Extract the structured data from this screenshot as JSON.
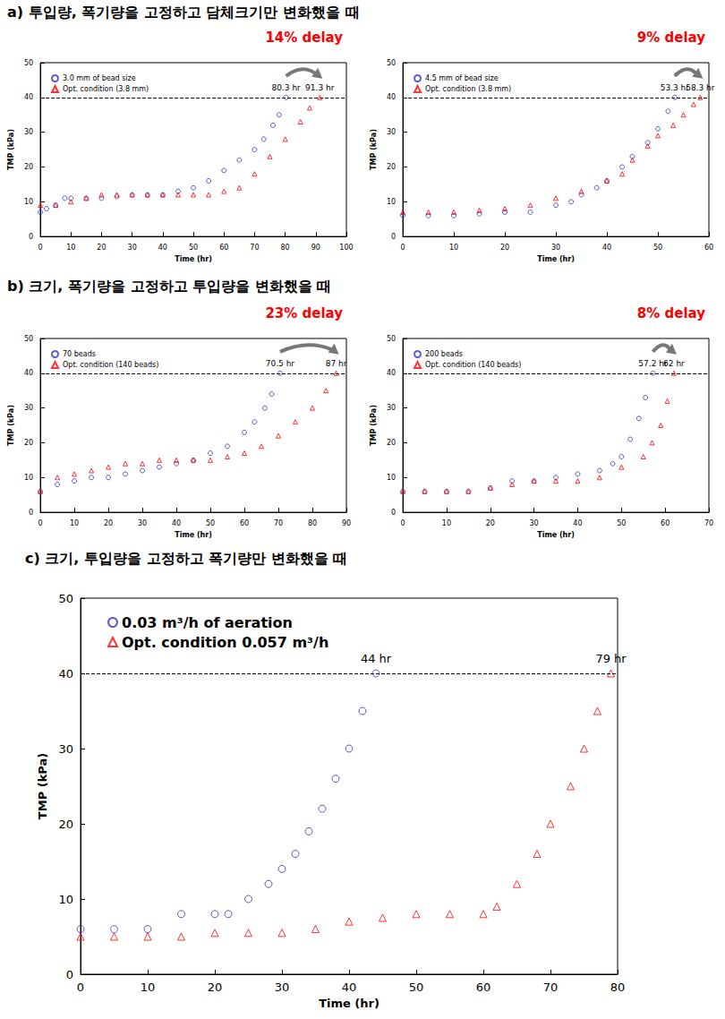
{
  "chart_data": [
    {
      "type": "scatter",
      "title": "a) 투입량, 폭기량을 고정하고 담체크기만 변화했을 때",
      "xlabel": "Time (hr)",
      "ylabel": "TMP (kPa)",
      "xlim": [
        0,
        100
      ],
      "xticks": [
        0,
        10,
        20,
        30,
        40,
        50,
        60,
        70,
        80,
        90,
        100
      ],
      "ylim": [
        0,
        50
      ],
      "yticks": [
        0,
        10,
        20,
        30,
        40,
        50
      ],
      "legend": "upper left",
      "grid": false,
      "threshold": 40,
      "series": [
        {
          "name": "3.0 mm of bead size",
          "color": "#3333cc",
          "marker": "circle",
          "values": [
            [
              0,
              7
            ],
            [
              2,
              8
            ],
            [
              5,
              9
            ],
            [
              8,
              11
            ],
            [
              10,
              11
            ],
            [
              15,
              11
            ],
            [
              20,
              11
            ],
            [
              25,
              11.5
            ],
            [
              30,
              12
            ],
            [
              35,
              12
            ],
            [
              40,
              12
            ],
            [
              45,
              13
            ],
            [
              50,
              14
            ],
            [
              55,
              16
            ],
            [
              60,
              19
            ],
            [
              65,
              22
            ],
            [
              70,
              25
            ],
            [
              73,
              28
            ],
            [
              76,
              32
            ],
            [
              78,
              35
            ],
            [
              80.3,
              40
            ]
          ]
        },
        {
          "name": "Opt. condition (3.8 mm)",
          "color": "#ff0000",
          "marker": "triangle",
          "values": [
            [
              0,
              9
            ],
            [
              5,
              9
            ],
            [
              10,
              10
            ],
            [
              15,
              11
            ],
            [
              20,
              12
            ],
            [
              25,
              12
            ],
            [
              30,
              12
            ],
            [
              35,
              12
            ],
            [
              40,
              12
            ],
            [
              45,
              12
            ],
            [
              50,
              12
            ],
            [
              55,
              12
            ],
            [
              60,
              13
            ],
            [
              65,
              14
            ],
            [
              70,
              18
            ],
            [
              75,
              23
            ],
            [
              80,
              28
            ],
            [
              85,
              33
            ],
            [
              88,
              37
            ],
            [
              91.3,
              40
            ]
          ]
        }
      ],
      "annotations": [
        {
          "text": "80.3 hr",
          "x": 80.3,
          "y": 40
        },
        {
          "text": "91.3 hr",
          "x": 91.3,
          "y": 40
        },
        {
          "text": "14% delay",
          "color": "#ff0000"
        }
      ]
    },
    {
      "type": "scatter",
      "xlabel": "Time (hr)",
      "ylabel": "TMP (kPa)",
      "xlim": [
        0,
        60
      ],
      "xticks": [
        0,
        10,
        20,
        30,
        40,
        50,
        60
      ],
      "ylim": [
        0,
        50
      ],
      "yticks": [
        0,
        10,
        20,
        30,
        40,
        50
      ],
      "legend": "upper left",
      "grid": false,
      "threshold": 40,
      "series": [
        {
          "name": "4.5 mm of bead size",
          "color": "#3333cc",
          "marker": "circle",
          "values": [
            [
              0,
              6
            ],
            [
              5,
              6
            ],
            [
              10,
              6
            ],
            [
              15,
              6.5
            ],
            [
              20,
              7
            ],
            [
              25,
              7
            ],
            [
              30,
              9
            ],
            [
              33,
              10
            ],
            [
              35,
              12
            ],
            [
              38,
              14
            ],
            [
              40,
              16
            ],
            [
              43,
              20
            ],
            [
              45,
              23
            ],
            [
              48,
              27
            ],
            [
              50,
              31
            ],
            [
              52,
              36
            ],
            [
              53.3,
              40
            ]
          ]
        },
        {
          "name": "Opt. condition (3.8 mm)",
          "color": "#ff0000",
          "marker": "triangle",
          "values": [
            [
              0,
              7
            ],
            [
              5,
              7
            ],
            [
              10,
              7
            ],
            [
              15,
              7.5
            ],
            [
              20,
              8
            ],
            [
              25,
              9
            ],
            [
              30,
              11
            ],
            [
              35,
              13
            ],
            [
              40,
              16
            ],
            [
              43,
              18
            ],
            [
              45,
              22
            ],
            [
              48,
              26
            ],
            [
              50,
              29
            ],
            [
              53,
              32
            ],
            [
              55,
              35
            ],
            [
              57,
              38
            ],
            [
              58.3,
              40
            ]
          ]
        }
      ],
      "annotations": [
        {
          "text": "53.3 hr",
          "x": 53.3,
          "y": 40
        },
        {
          "text": "58.3 hr",
          "x": 58.3,
          "y": 40
        },
        {
          "text": "9% delay",
          "color": "#ff0000"
        }
      ]
    },
    {
      "type": "scatter",
      "title": "b) 크기, 폭기량을 고정하고 투입량을 변화했을 때",
      "xlabel": "Time (hr)",
      "ylabel": "TMP (kPa)",
      "xlim": [
        0,
        90
      ],
      "xticks": [
        0,
        10,
        20,
        30,
        40,
        50,
        60,
        70,
        80,
        90
      ],
      "ylim": [
        0,
        50
      ],
      "yticks": [
        0,
        10,
        20,
        30,
        40,
        50
      ],
      "legend": "upper left",
      "grid": false,
      "threshold": 40,
      "series": [
        {
          "name": "70 beads",
          "color": "#3333cc",
          "marker": "circle",
          "values": [
            [
              0,
              6
            ],
            [
              5,
              8
            ],
            [
              10,
              9
            ],
            [
              15,
              10
            ],
            [
              20,
              10
            ],
            [
              25,
              11
            ],
            [
              30,
              12
            ],
            [
              35,
              13
            ],
            [
              40,
              14
            ],
            [
              45,
              15
            ],
            [
              50,
              17
            ],
            [
              55,
              19
            ],
            [
              60,
              23
            ],
            [
              63,
              26
            ],
            [
              66,
              30
            ],
            [
              68,
              34
            ],
            [
              70.5,
              40
            ]
          ]
        },
        {
          "name": "Opt. condition (140 beads)",
          "color": "#ff0000",
          "marker": "triangle",
          "values": [
            [
              0,
              6
            ],
            [
              5,
              10
            ],
            [
              10,
              11
            ],
            [
              15,
              12
            ],
            [
              20,
              13
            ],
            [
              25,
              14
            ],
            [
              30,
              14
            ],
            [
              35,
              15
            ],
            [
              40,
              15
            ],
            [
              45,
              15
            ],
            [
              50,
              15
            ],
            [
              55,
              16
            ],
            [
              60,
              17
            ],
            [
              65,
              19
            ],
            [
              70,
              22
            ],
            [
              75,
              26
            ],
            [
              80,
              30
            ],
            [
              84,
              35
            ],
            [
              87,
              40
            ]
          ]
        }
      ],
      "annotations": [
        {
          "text": "70.5 hr",
          "x": 70.5,
          "y": 40
        },
        {
          "text": "87 hr",
          "x": 87,
          "y": 40
        },
        {
          "text": "23% delay",
          "color": "#ff0000"
        }
      ]
    },
    {
      "type": "scatter",
      "xlabel": "Time (hr)",
      "ylabel": "TMP (kPa)",
      "xlim": [
        0,
        70
      ],
      "xticks": [
        0,
        10,
        20,
        30,
        40,
        50,
        60,
        70
      ],
      "ylim": [
        0,
        50
      ],
      "yticks": [
        0,
        10,
        20,
        30,
        40,
        50
      ],
      "legend": "upper left",
      "grid": false,
      "threshold": 40,
      "series": [
        {
          "name": "200 beads",
          "color": "#3333cc",
          "marker": "circle",
          "values": [
            [
              0,
              6
            ],
            [
              5,
              6
            ],
            [
              10,
              6
            ],
            [
              15,
              6
            ],
            [
              20,
              7
            ],
            [
              25,
              9
            ],
            [
              30,
              9
            ],
            [
              35,
              10
            ],
            [
              40,
              11
            ],
            [
              45,
              12
            ],
            [
              48,
              14
            ],
            [
              50,
              16
            ],
            [
              52,
              21
            ],
            [
              54,
              27
            ],
            [
              55.5,
              33
            ],
            [
              57.2,
              40
            ]
          ]
        },
        {
          "name": "Opt. condition (140 beads)",
          "color": "#ff0000",
          "marker": "triangle",
          "values": [
            [
              0,
              6
            ],
            [
              5,
              6
            ],
            [
              10,
              6
            ],
            [
              15,
              6
            ],
            [
              20,
              7
            ],
            [
              25,
              8
            ],
            [
              30,
              9
            ],
            [
              35,
              9
            ],
            [
              40,
              9
            ],
            [
              45,
              10
            ],
            [
              50,
              13
            ],
            [
              55,
              16
            ],
            [
              57,
              20
            ],
            [
              59,
              25
            ],
            [
              60.5,
              32
            ],
            [
              62,
              40
            ]
          ]
        }
      ],
      "annotations": [
        {
          "text": "57.2 hr",
          "x": 57.2,
          "y": 40
        },
        {
          "text": "62 hr",
          "x": 62,
          "y": 40
        },
        {
          "text": "8% delay",
          "color": "#ff0000"
        }
      ]
    },
    {
      "type": "scatter",
      "title": "c) 크기, 투입량을 고정하고 폭기량만 변화했을 때",
      "xlabel": "Time (hr)",
      "ylabel": "TMP (kPa)",
      "xlim": [
        0,
        80
      ],
      "xticks": [
        0,
        10,
        20,
        30,
        40,
        50,
        60,
        70,
        80
      ],
      "ylim": [
        0,
        50
      ],
      "yticks": [
        0,
        10,
        20,
        30,
        40,
        50
      ],
      "legend": "upper left",
      "grid": false,
      "threshold": 40,
      "series": [
        {
          "name": "0.03 m³/h of aeration",
          "color": "#3333cc",
          "marker": "circle",
          "values": [
            [
              0,
              6
            ],
            [
              5,
              6
            ],
            [
              10,
              6
            ],
            [
              15,
              8
            ],
            [
              20,
              8
            ],
            [
              22,
              8
            ],
            [
              25,
              10
            ],
            [
              28,
              12
            ],
            [
              30,
              14
            ],
            [
              32,
              16
            ],
            [
              34,
              19
            ],
            [
              36,
              22
            ],
            [
              38,
              26
            ],
            [
              40,
              30
            ],
            [
              42,
              35
            ],
            [
              44,
              40
            ]
          ]
        },
        {
          "name": "Opt. condition 0.057 m³/h",
          "color": "#ff0000",
          "marker": "triangle",
          "values": [
            [
              0,
              5
            ],
            [
              5,
              5
            ],
            [
              10,
              5
            ],
            [
              15,
              5
            ],
            [
              20,
              5.5
            ],
            [
              25,
              5.5
            ],
            [
              30,
              5.5
            ],
            [
              35,
              6
            ],
            [
              40,
              7
            ],
            [
              45,
              7.5
            ],
            [
              50,
              8
            ],
            [
              55,
              8
            ],
            [
              60,
              8
            ],
            [
              62,
              9
            ],
            [
              65,
              12
            ],
            [
              68,
              16
            ],
            [
              70,
              20
            ],
            [
              73,
              25
            ],
            [
              75,
              30
            ],
            [
              77,
              35
            ],
            [
              79,
              40
            ]
          ]
        }
      ],
      "annotations": [
        {
          "text": "44 hr",
          "x": 44,
          "y": 40
        },
        {
          "text": "79 hr",
          "x": 79,
          "y": 40
        }
      ]
    }
  ]
}
